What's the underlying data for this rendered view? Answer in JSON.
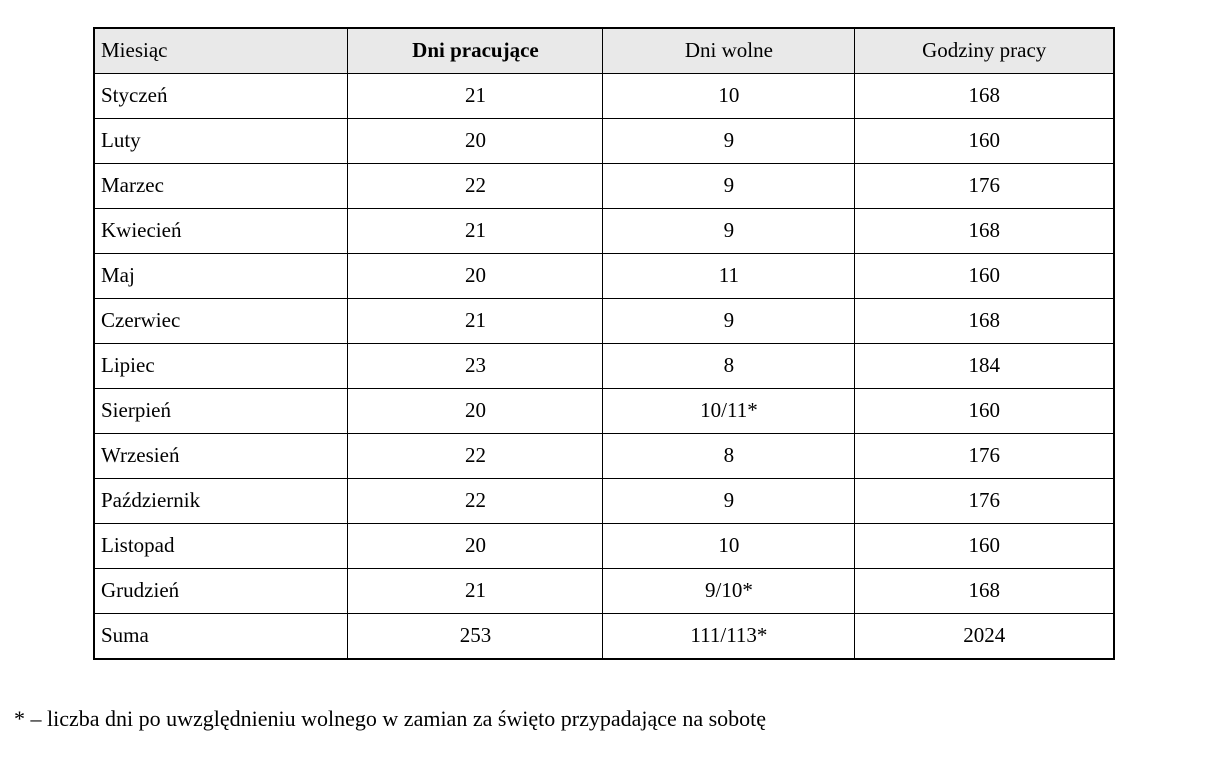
{
  "table": {
    "headers": {
      "month": "Miesiąc",
      "working_days": "Dni pracujące",
      "days_off": "Dni wolne",
      "working_hours": "Godziny pracy"
    },
    "rows": [
      [
        "Styczeń",
        "21",
        "10",
        "168"
      ],
      [
        "Luty",
        "20",
        "9",
        "160"
      ],
      [
        "Marzec",
        "22",
        "9",
        "176"
      ],
      [
        "Kwiecień",
        "21",
        "9",
        "168"
      ],
      [
        "Maj",
        "20",
        "11",
        "160"
      ],
      [
        "Czerwiec",
        "21",
        "9",
        "168"
      ],
      [
        "Lipiec",
        "23",
        "8",
        "184"
      ],
      [
        "Sierpień",
        "20",
        "10/11*",
        "160"
      ],
      [
        "Wrzesień",
        "22",
        "8",
        "176"
      ],
      [
        "Październik",
        "22",
        "9",
        "176"
      ],
      [
        "Listopad",
        "20",
        "10",
        "160"
      ],
      [
        "Grudzień",
        "21",
        "9/10*",
        "168"
      ],
      [
        "Suma",
        "253",
        "111/113*",
        "2024"
      ]
    ]
  },
  "footnote": "* – liczba dni po uwzględnieniu wolnego w zamian za święto przypadające na sobotę",
  "colors": {
    "header_bg": "#e9e9e9",
    "border": "#000000",
    "background": "#ffffff"
  }
}
